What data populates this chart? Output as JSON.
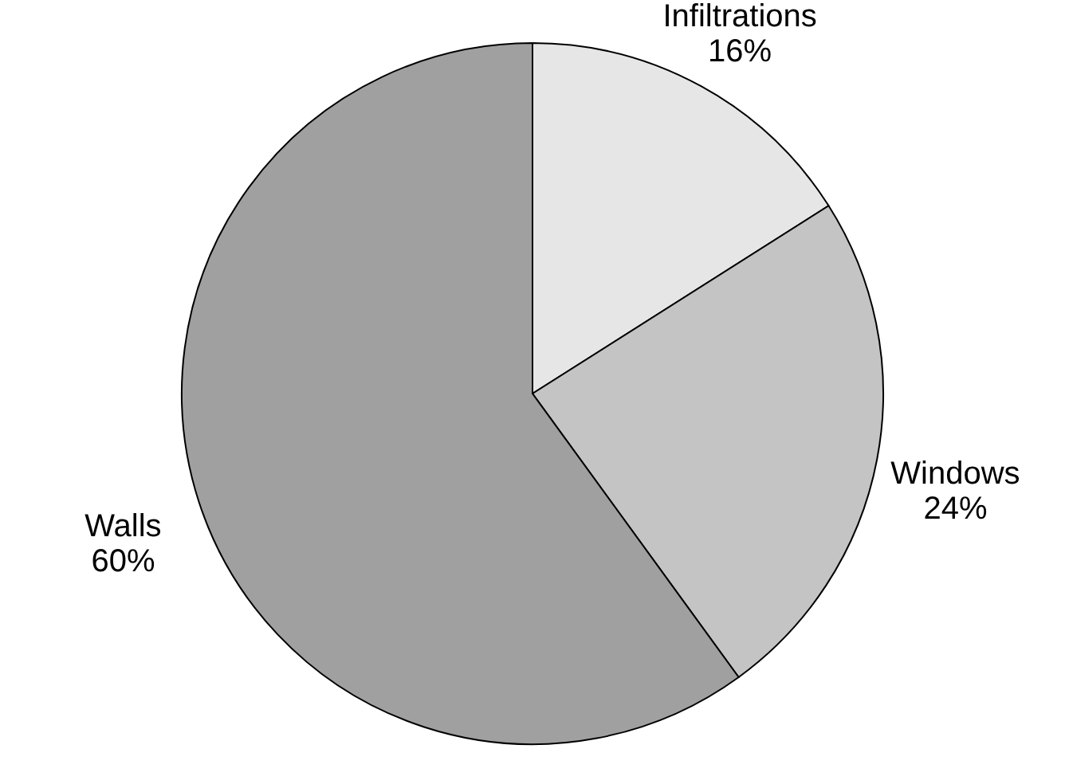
{
  "chart_data": {
    "type": "pie",
    "categories": [
      "Infiltrations",
      "Windows",
      "Walls"
    ],
    "values": [
      16,
      24,
      60
    ],
    "colors": [
      "#e6e6e6",
      "#c4c4c4",
      "#a0a0a0"
    ],
    "value_labels": [
      "16%",
      "24%",
      "60%"
    ],
    "legend": false
  }
}
